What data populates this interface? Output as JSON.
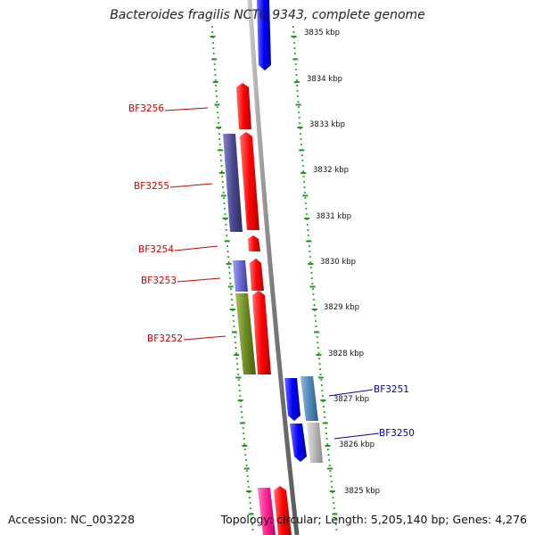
{
  "title": "Bacteroides fragilis NCTC 9343, complete genome",
  "footer": {
    "accession": "Accession: NC_003228",
    "stats": "Topology: circular; Length: 5,205,140 bp; Genes: 4,276"
  },
  "colors": {
    "backbone": "#8a8a8a",
    "ruler_dots": "#1f9a1f",
    "forward_gene": "#ff0000",
    "reverse_gene": "#0000ff",
    "label_forward": "#cc0000",
    "label_reverse": "#0000aa"
  },
  "scale_labels": [
    "3835 kbp",
    "3834 kbp",
    "3833 kbp",
    "3832 kbp",
    "3831 kbp",
    "3830 kbp",
    "3829 kbp",
    "3828 kbp",
    "3827 kbp",
    "3826 kbp",
    "3825 kbp"
  ],
  "gene_labels": [
    {
      "text": "BF3256",
      "strand": "forward"
    },
    {
      "text": "BF3255",
      "strand": "forward"
    },
    {
      "text": "BF3254",
      "strand": "forward"
    },
    {
      "text": "BF3253",
      "strand": "forward"
    },
    {
      "text": "BF3252",
      "strand": "forward"
    },
    {
      "text": "BF3251",
      "strand": "reverse"
    },
    {
      "text": "BF3250",
      "strand": "reverse"
    }
  ]
}
